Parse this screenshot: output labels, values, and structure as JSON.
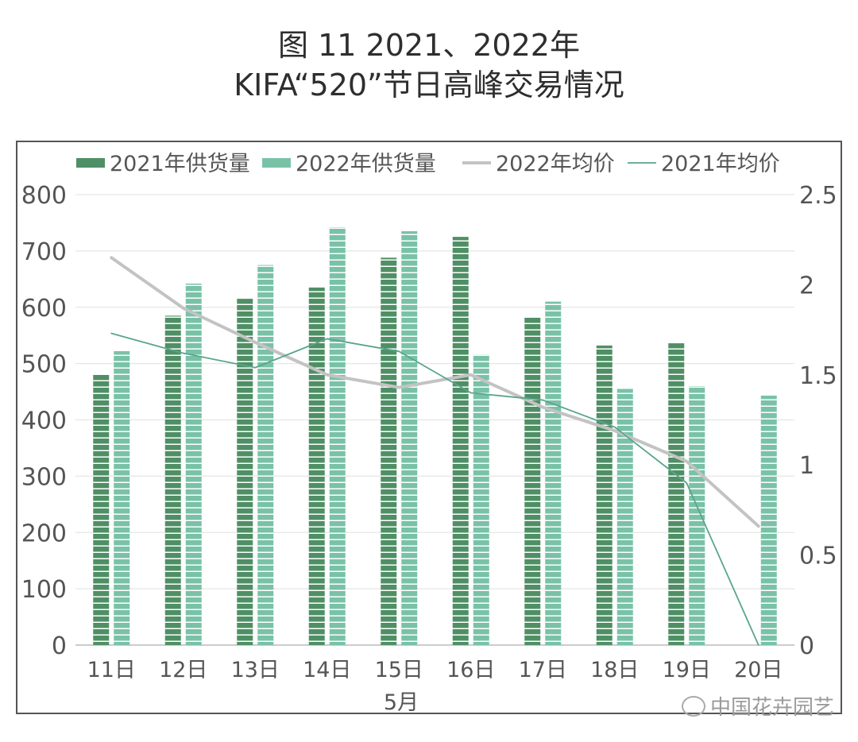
{
  "title_line1": "图 11 2021、2022年",
  "title_line2": "KIFA“520”节日高峰交易情况",
  "watermark": "中国花卉园艺",
  "colors": {
    "bar2021": "#4f8f65",
    "bar2022": "#79c2a8",
    "line2022": "#c3c3c3",
    "line2021": "#5aa58c",
    "grid": "#e6e6e6",
    "text": "#555555"
  },
  "chart_data": {
    "type": "bar",
    "categories": [
      "11日",
      "12日",
      "13日",
      "14日",
      "15日",
      "16日",
      "17日",
      "18日",
      "19日",
      "20日"
    ],
    "xlabel": "5月",
    "ylim_left": [
      0,
      800
    ],
    "yticks_left": [
      "0",
      "100",
      "200",
      "300",
      "400",
      "500",
      "600",
      "700",
      "800"
    ],
    "ylim_right": [
      0,
      2.5
    ],
    "yticks_right": [
      "0",
      "0.5",
      "1",
      "1.5",
      "2",
      "2.5"
    ],
    "legend_position": "top",
    "grid": true,
    "series": [
      {
        "name": "2021年供货量",
        "kind": "bar",
        "axis": "left",
        "values": [
          480,
          585,
          615,
          635,
          688,
          725,
          582,
          532,
          536,
          null
        ]
      },
      {
        "name": "2022年供货量",
        "kind": "bar",
        "axis": "left",
        "values": [
          522,
          642,
          675,
          742,
          735,
          516,
          610,
          455,
          460,
          443
        ]
      },
      {
        "name": "2022年均价",
        "kind": "line",
        "axis": "right",
        "values": [
          2.15,
          1.87,
          1.68,
          1.5,
          1.43,
          1.5,
          1.32,
          1.19,
          1.02,
          0.66
        ]
      },
      {
        "name": "2021年均价",
        "kind": "line",
        "axis": "right",
        "values": [
          1.73,
          1.62,
          1.54,
          1.7,
          1.63,
          1.4,
          1.36,
          1.21,
          0.9,
          0.0
        ]
      }
    ]
  }
}
